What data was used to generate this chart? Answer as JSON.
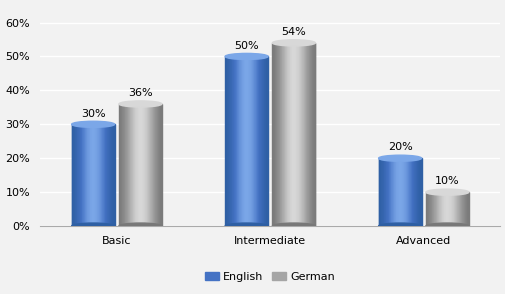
{
  "categories": [
    "Basic",
    "Intermediate",
    "Advanced"
  ],
  "english_values": [
    0.3,
    0.5,
    0.2
  ],
  "german_values": [
    0.36,
    0.54,
    0.1
  ],
  "english_color_main": "#4472C4",
  "english_color_light": "#7BA7E8",
  "english_color_dark": "#2E5FA3",
  "german_color_main": "#A5A5A5",
  "german_color_light": "#D8D8D8",
  "german_color_dark": "#787878",
  "bar_width": 0.28,
  "ylim": [
    0,
    0.65
  ],
  "yticks": [
    0.0,
    0.1,
    0.2,
    0.3,
    0.4,
    0.5,
    0.6
  ],
  "legend_labels": [
    "English",
    "German"
  ],
  "label_fontsize": 8,
  "tick_fontsize": 8,
  "background_color": "#f2f2f2",
  "grid_color": "#ffffff"
}
